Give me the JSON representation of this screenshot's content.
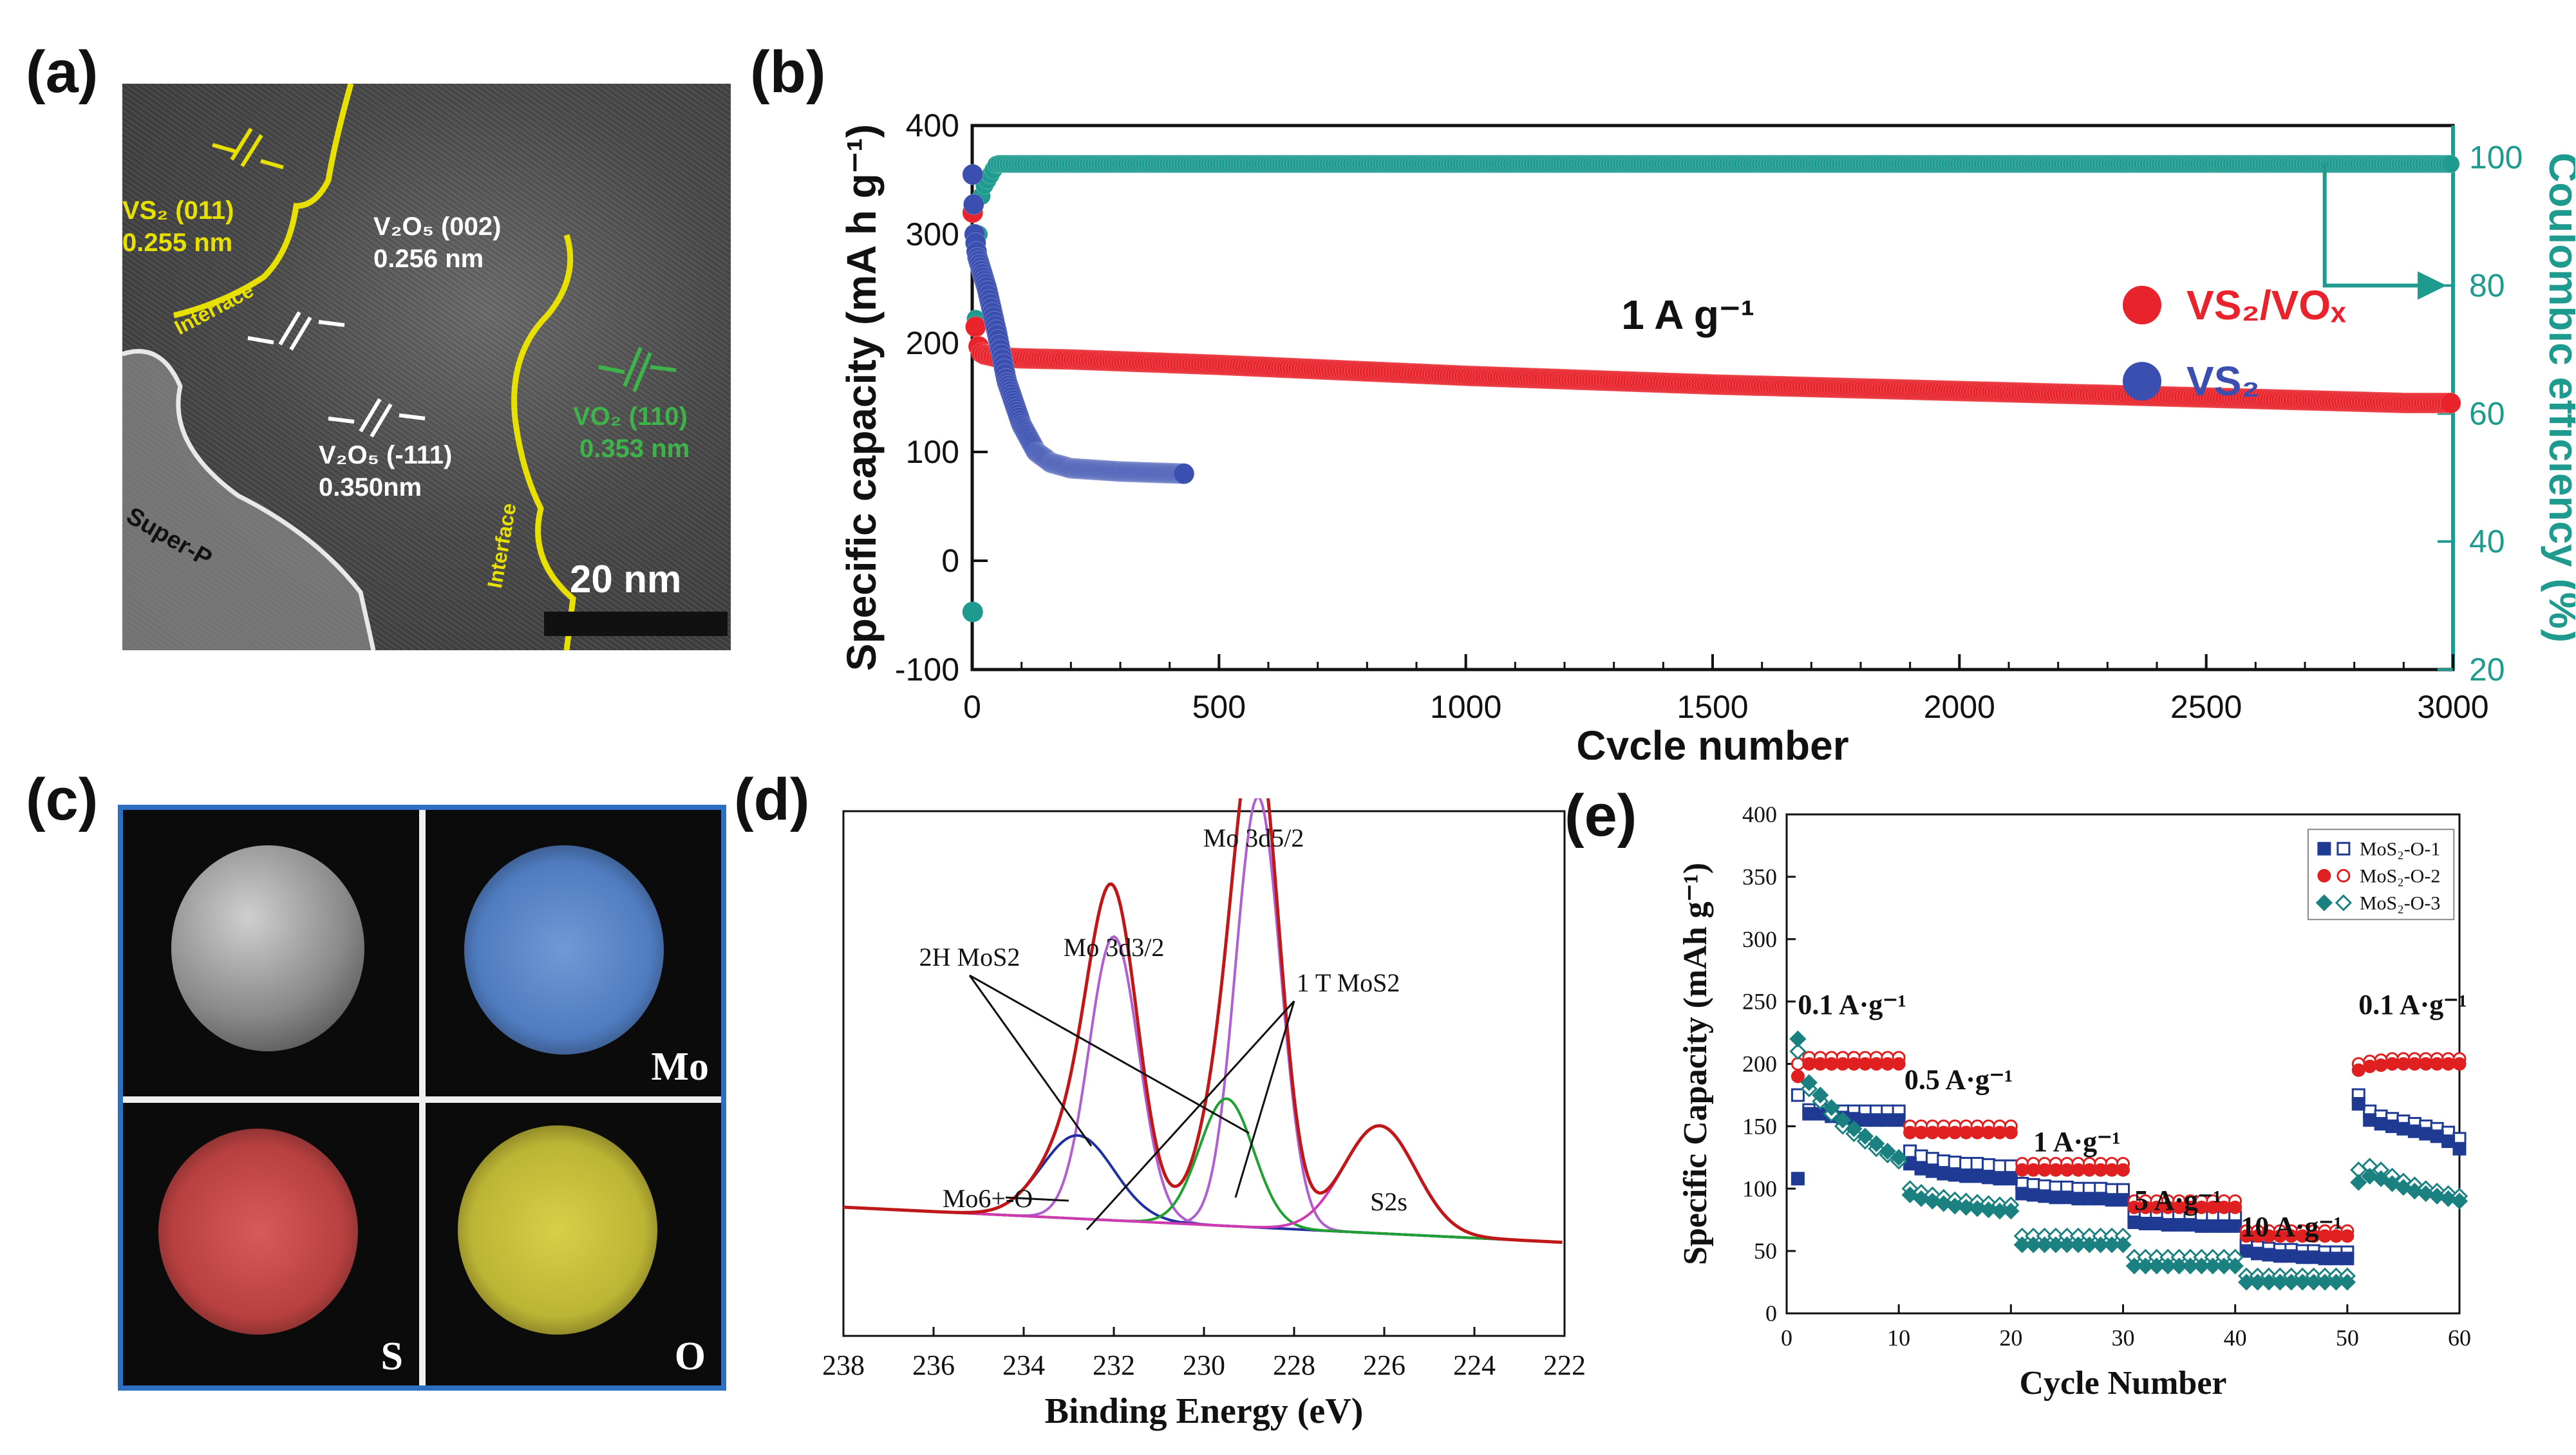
{
  "panels": {
    "a": {
      "label": "(a)",
      "annotations": {
        "vs2_plane": "VS₂ (011)",
        "vs2_spacing": "0.255 nm",
        "v2o5_002_plane": "V₂O₅ (002)",
        "v2o5_002_spacing": "0.256 nm",
        "v2o5_111_plane": "V₂O₅ (-111)",
        "v2o5_111_spacing": "0.350nm",
        "vo2_plane": "VO₂ (110)",
        "vo2_spacing": "0.353 nm",
        "interface_left": "Interface",
        "interface_right": "Interface",
        "super_p": "Super-P",
        "scale_bar": "20 nm"
      },
      "colors": {
        "yellow": "#e8e000",
        "green": "#3db34a",
        "white": "#ffffff"
      }
    },
    "b": {
      "label": "(b)"
    },
    "c": {
      "label": "(c)",
      "maps": {
        "mo": "Mo",
        "s": "S",
        "o": "O"
      },
      "colors": {
        "frame": "#2d6fc2",
        "mo": "#5a88c8",
        "s": "#c84646",
        "o": "#c8bf3c"
      }
    },
    "d": {
      "label": "(d)"
    },
    "e": {
      "label": "(e)"
    }
  },
  "chart_data": [
    {
      "id": "b",
      "type": "scatter",
      "xlabel": "Cycle number",
      "ylabel": "Specific capacity (mA h g⁻¹)",
      "y2label": "Coulombic efficiency (%)",
      "xlim": [
        0,
        3000
      ],
      "ylim": [
        -100,
        400
      ],
      "y2lim": [
        20,
        105
      ],
      "xticks": [
        0,
        500,
        1000,
        1500,
        2000,
        2500,
        3000
      ],
      "yticks": [
        -100,
        0,
        100,
        200,
        300,
        400
      ],
      "y2ticks": [
        20,
        40,
        60,
        80,
        100
      ],
      "annotation": "1 A g⁻¹",
      "legend_position": "bottom-right",
      "series": [
        {
          "name": "VS₂/VOₓ",
          "color": "#e8232b",
          "axis": "left",
          "x": [
            1,
            5,
            10,
            20,
            50,
            100,
            200,
            500,
            1000,
            1500,
            2000,
            2500,
            2900,
            3000
          ],
          "y": [
            320,
            225,
            200,
            190,
            187,
            186,
            185,
            180,
            170,
            162,
            156,
            150,
            145,
            145
          ]
        },
        {
          "name": "VS₂",
          "color": "#3a4fb0",
          "axis": "left",
          "x": [
            1,
            5,
            10,
            20,
            30,
            50,
            70,
            100,
            130,
            160,
            200,
            300,
            430
          ],
          "y": [
            355,
            300,
            280,
            265,
            250,
            210,
            165,
            125,
            100,
            90,
            85,
            82,
            80
          ]
        },
        {
          "name": "Coulombic efficiency",
          "color": "#1e9a8f",
          "axis": "right",
          "x": [
            1,
            5,
            10,
            20,
            50,
            100,
            500,
            1000,
            1500,
            2000,
            2500,
            3000
          ],
          "y": [
            29,
            68,
            85,
            95,
            99,
            99,
            99,
            99,
            99,
            99,
            99,
            99
          ]
        }
      ]
    },
    {
      "id": "d",
      "type": "line",
      "xlabel": "Binding Energy (eV)",
      "xlim": [
        238,
        222
      ],
      "xticks": [
        238,
        236,
        234,
        232,
        230,
        228,
        226,
        224,
        222
      ],
      "annotations": [
        "Mo 3d5/2",
        "Mo 3d3/2",
        "2H MoS2",
        "1 T MoS2",
        "Mo6+-O",
        "S2s"
      ],
      "peaks": [
        {
          "name": "2H MoS2 3d3/2",
          "center": 232.0,
          "height": 58,
          "width": 0.55,
          "color": "#b05fd0"
        },
        {
          "name": "2H MoS2 3d5/2",
          "center": 228.8,
          "height": 88,
          "width": 0.5,
          "color": "#b05fd0"
        },
        {
          "name": "1T MoS2 3d3/2",
          "center": 232.8,
          "height": 17,
          "width": 0.8,
          "color": "#2030a0"
        },
        {
          "name": "1T MoS2 3d5/2",
          "center": 229.5,
          "height": 26,
          "width": 0.6,
          "color": "#20a030"
        },
        {
          "name": "S2s",
          "center": 226.1,
          "height": 22,
          "width": 0.8,
          "color": "#d03ab0"
        }
      ],
      "envelope_color": "#c01818"
    },
    {
      "id": "e",
      "type": "scatter",
      "xlabel": "Cycle Number",
      "ylabel": "Specific Capacity (mAh g⁻¹)",
      "xlim": [
        0,
        60
      ],
      "ylim": [
        0,
        400
      ],
      "xticks": [
        0,
        10,
        20,
        30,
        40,
        50,
        60
      ],
      "yticks": [
        0,
        50,
        100,
        150,
        200,
        250,
        300,
        350,
        400
      ],
      "legend_position": "top-right",
      "rate_labels": [
        {
          "text": "0.1 A·g⁻¹",
          "x": 1,
          "y": 240
        },
        {
          "text": "0.5 A·g⁻¹",
          "x": 10.5,
          "y": 180
        },
        {
          "text": "1 A·g⁻¹",
          "x": 22,
          "y": 130
        },
        {
          "text": "5 A·g⁻¹",
          "x": 31,
          "y": 83
        },
        {
          "text": "10 A·g⁻¹",
          "x": 40.5,
          "y": 62
        },
        {
          "text": "0.1 A·g⁻¹",
          "x": 51,
          "y": 240
        }
      ],
      "series": [
        {
          "name": "MoS₂-O-1",
          "color": "#1f3a93",
          "marker": "square",
          "filled": [
            108,
            160,
            160,
            158,
            157,
            156,
            155,
            155,
            155,
            155,
            120,
            116,
            114,
            112,
            111,
            110,
            110,
            109,
            108,
            108,
            96,
            95,
            94,
            93,
            93,
            92,
            92,
            92,
            91,
            91,
            73,
            72,
            72,
            71,
            71,
            71,
            70,
            70,
            70,
            70,
            50,
            48,
            47,
            46,
            46,
            45,
            45,
            44,
            44,
            44,
            168,
            155,
            152,
            150,
            148,
            146,
            144,
            142,
            138,
            132
          ],
          "open": [
            175,
            163,
            163,
            162,
            162,
            162,
            162,
            162,
            162,
            162,
            130,
            126,
            124,
            122,
            121,
            120,
            120,
            119,
            118,
            118,
            104,
            103,
            102,
            101,
            101,
            100,
            100,
            100,
            99,
            99,
            80,
            79,
            79,
            78,
            78,
            78,
            77,
            77,
            77,
            77,
            55,
            53,
            52,
            51,
            51,
            50,
            50,
            49,
            49,
            49,
            175,
            162,
            158,
            156,
            154,
            152,
            150,
            148,
            145,
            140
          ]
        },
        {
          "name": "MoS₂-O-2",
          "color": "#e02020",
          "marker": "circle",
          "filled": [
            190,
            200,
            200,
            200,
            200,
            200,
            200,
            200,
            200,
            200,
            145,
            145,
            145,
            145,
            145,
            145,
            145,
            145,
            145,
            145,
            115,
            115,
            115,
            115,
            115,
            115,
            115,
            115,
            115,
            115,
            85,
            85,
            85,
            85,
            85,
            85,
            85,
            85,
            85,
            85,
            62,
            62,
            62,
            62,
            62,
            62,
            62,
            62,
            62,
            62,
            195,
            198,
            199,
            200,
            200,
            200,
            200,
            200,
            200,
            200
          ],
          "open": [
            200,
            205,
            205,
            205,
            205,
            205,
            205,
            205,
            205,
            205,
            150,
            150,
            150,
            150,
            150,
            150,
            150,
            150,
            150,
            150,
            120,
            120,
            120,
            120,
            120,
            120,
            120,
            120,
            120,
            120,
            90,
            90,
            90,
            90,
            90,
            90,
            90,
            90,
            90,
            90,
            66,
            66,
            66,
            66,
            66,
            66,
            66,
            66,
            66,
            66,
            200,
            202,
            203,
            204,
            204,
            204,
            204,
            204,
            204,
            204
          ]
        },
        {
          "name": "MoS₂-O-3",
          "color": "#1a8080",
          "marker": "diamond",
          "filled": [
            220,
            185,
            175,
            165,
            155,
            148,
            142,
            136,
            130,
            125,
            95,
            92,
            90,
            88,
            86,
            85,
            84,
            83,
            82,
            82,
            55,
            55,
            55,
            55,
            55,
            55,
            55,
            55,
            55,
            55,
            38,
            38,
            38,
            38,
            38,
            38,
            38,
            38,
            38,
            38,
            25,
            25,
            25,
            25,
            25,
            25,
            25,
            25,
            25,
            25,
            105,
            110,
            108,
            104,
            101,
            98,
            96,
            94,
            92,
            90
          ],
          "open": [
            210,
            180,
            170,
            160,
            150,
            144,
            138,
            132,
            127,
            122,
            100,
            97,
            95,
            93,
            91,
            90,
            89,
            88,
            87,
            87,
            62,
            62,
            62,
            62,
            62,
            62,
            62,
            62,
            62,
            62,
            45,
            45,
            45,
            45,
            45,
            45,
            45,
            45,
            45,
            45,
            30,
            30,
            30,
            30,
            30,
            30,
            30,
            30,
            30,
            30,
            115,
            118,
            115,
            110,
            106,
            103,
            100,
            98,
            96,
            94
          ]
        }
      ]
    }
  ]
}
